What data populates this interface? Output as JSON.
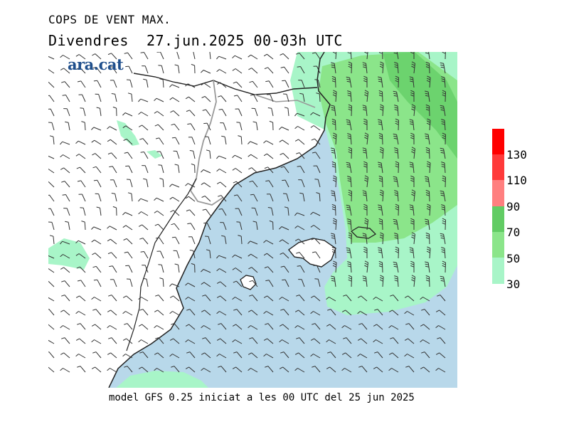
{
  "header": {
    "title": "COPS DE VENT MAX.",
    "subtitle": "Divendres  27.jun.2025 00-03h UTC"
  },
  "logo": {
    "text": "ara.cat"
  },
  "footer": {
    "text": "model GFS 0.25 iniciat a les 00 UTC del 25 jun 2025"
  },
  "legend": {
    "levels": [
      {
        "label": "30",
        "color": "#a8f5c8"
      },
      {
        "label": "50",
        "color": "#8be58a"
      },
      {
        "label": "70",
        "color": "#62cc64"
      },
      {
        "label": "90",
        "color": "#ff7f7f"
      },
      {
        "label": "110",
        "color": "#ff4a4a"
      },
      {
        "label": "130",
        "color": "#ff0000"
      }
    ],
    "units_top_color": "#ff0000"
  },
  "map": {
    "sea_color": "#b8d8ea",
    "land_color": "#ffffff",
    "coastline_color": "#222222",
    "border_color": "#aaaaaa",
    "barb_color": "#333333"
  }
}
